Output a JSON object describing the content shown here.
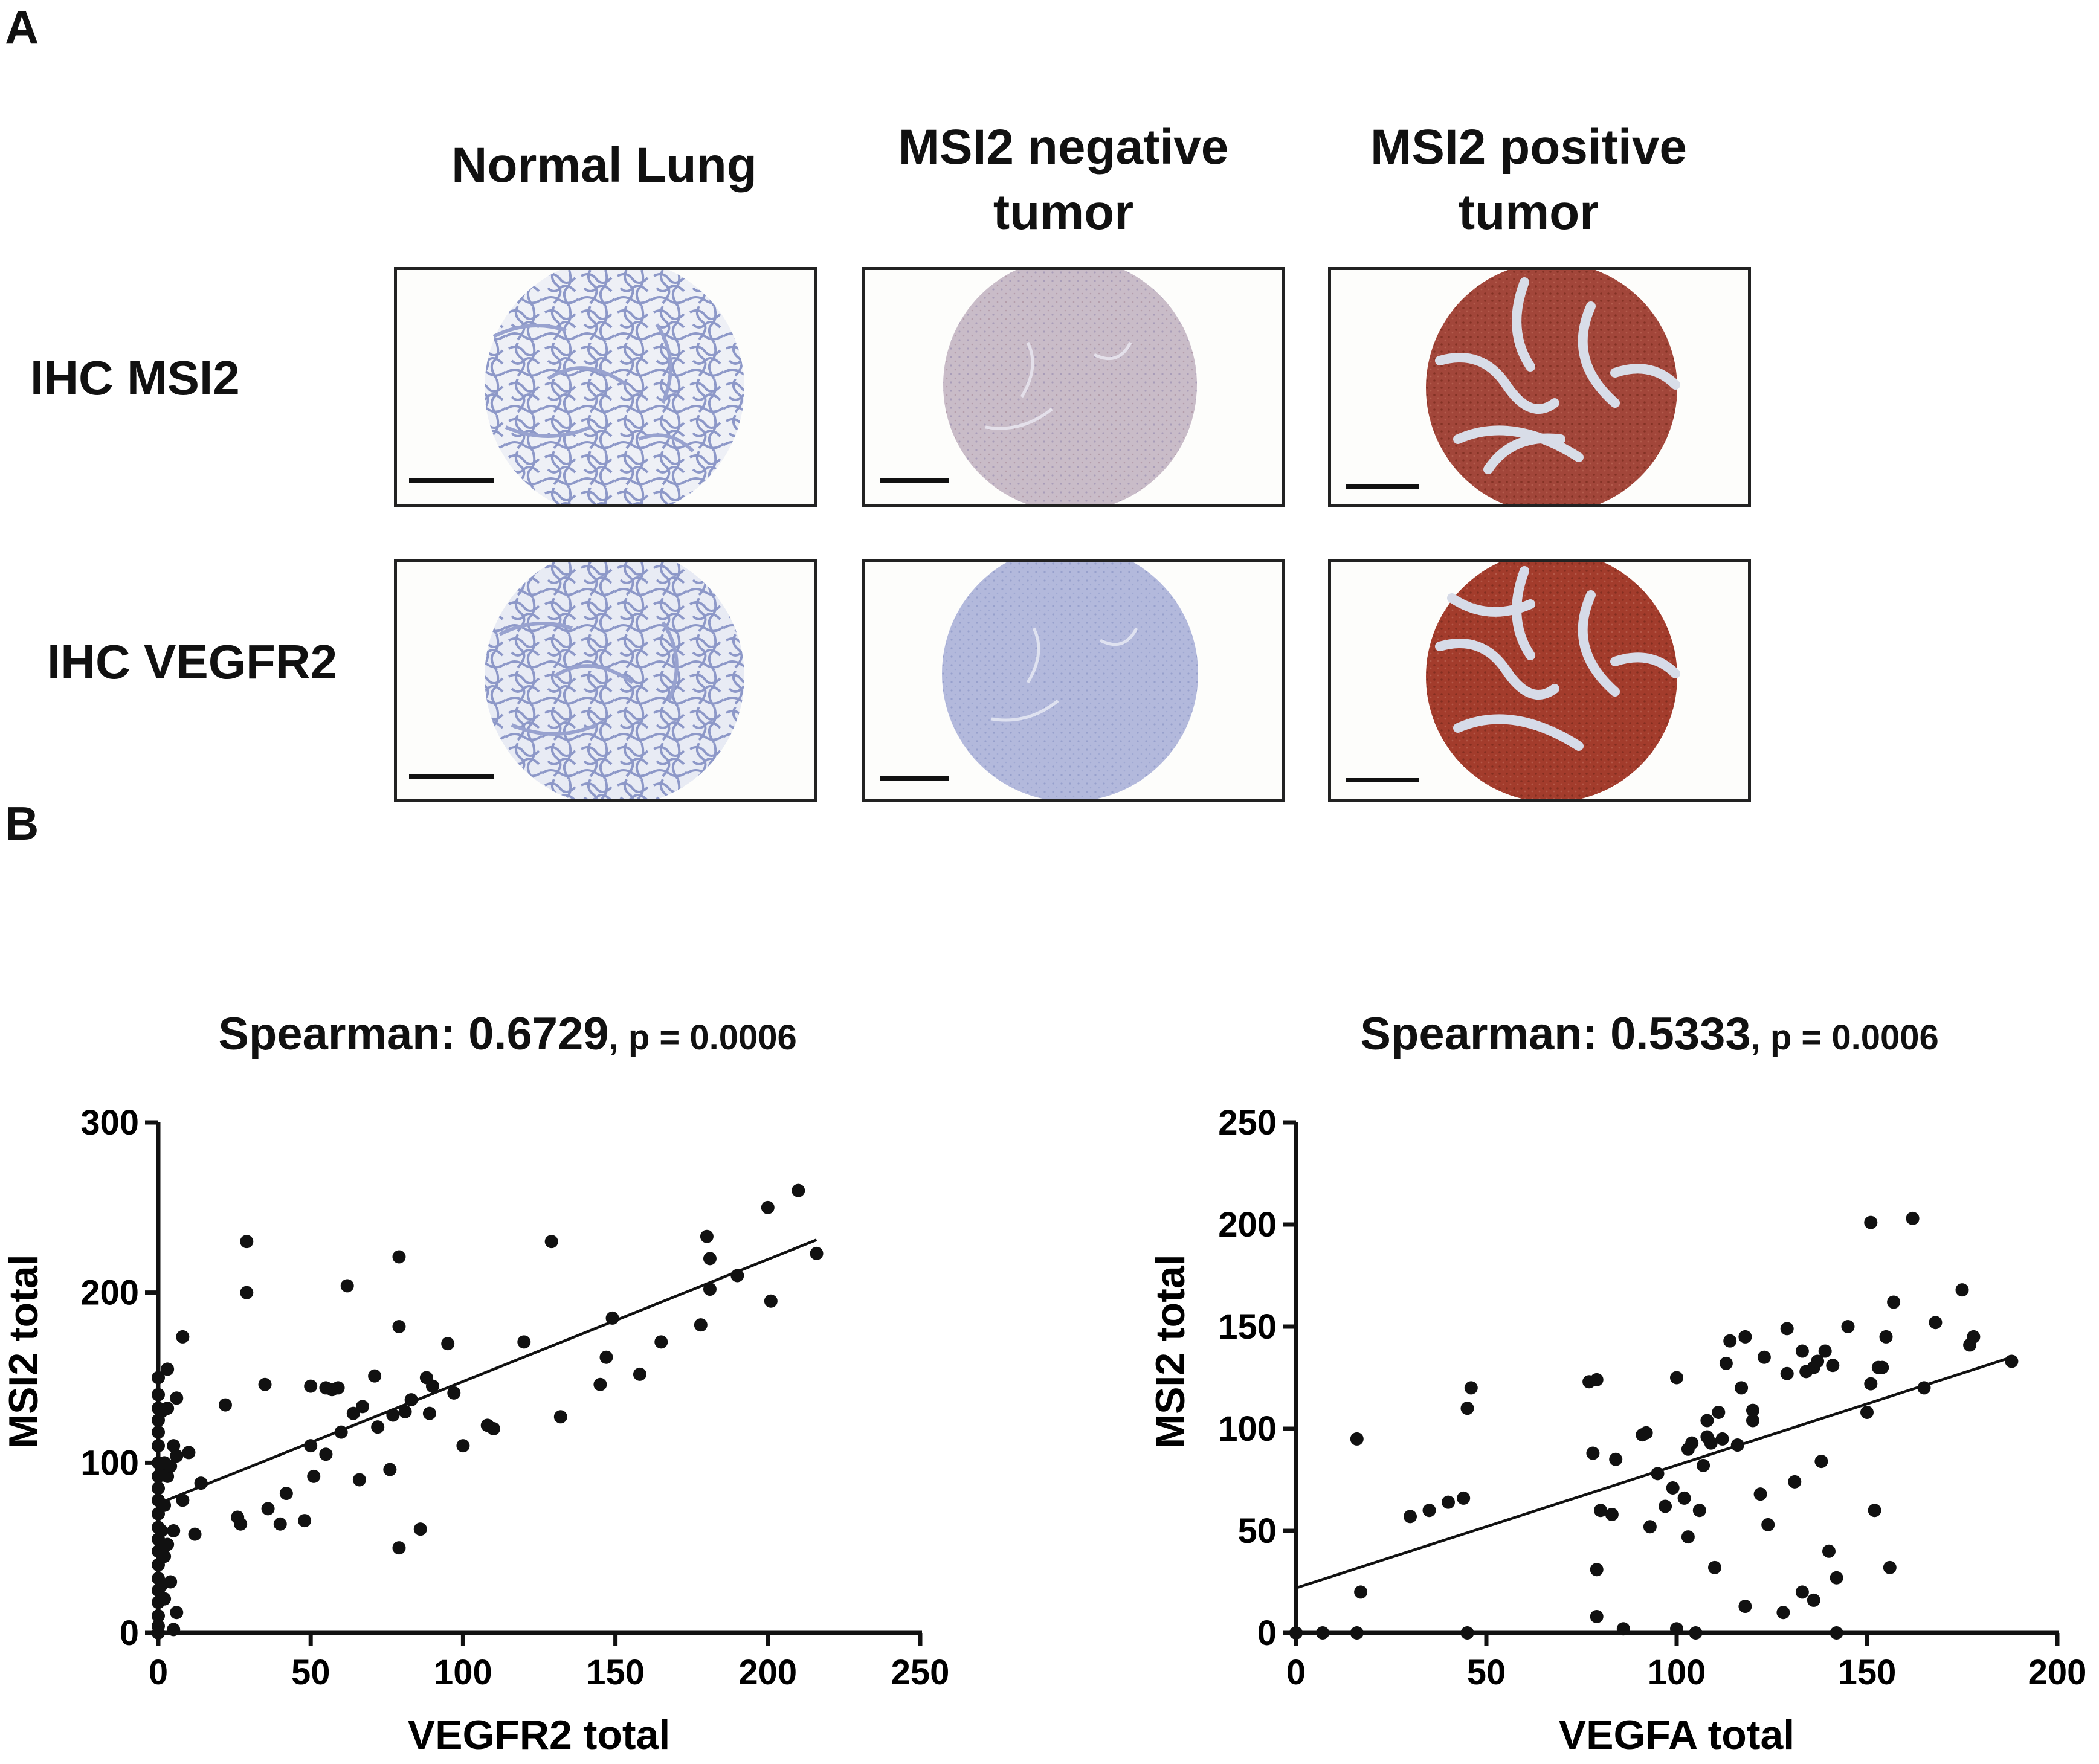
{
  "figure": {
    "panel_a_label": "A",
    "panel_b_label": "B"
  },
  "panel_a": {
    "columns": [
      {
        "title_line1": "Normal Lung",
        "title_line2": ""
      },
      {
        "title_line1": "MSI2 negative",
        "title_line2": "tumor"
      },
      {
        "title_line1": "MSI2 positive",
        "title_line2": "tumor"
      }
    ],
    "rows": [
      {
        "label": "IHC MSI2"
      },
      {
        "label": "IHC VEGFR2"
      }
    ],
    "stain_colors": {
      "hematoxylin": "#aab4d6",
      "weak_brown": "#c7b3bf",
      "dab_strong": "#9a3a2c",
      "background": "#fdfdfb"
    }
  },
  "chart_data": [
    {
      "type": "scatter",
      "title": "Spearman: 0.6729",
      "subtitle": ", p = 0.0006",
      "xlabel": "VEGFR2 total",
      "ylabel": "MSI2 total",
      "xlim": [
        0,
        250
      ],
      "ylim": [
        0,
        300
      ],
      "xticks": [
        0,
        50,
        100,
        150,
        200,
        250
      ],
      "yticks": [
        0,
        100,
        200,
        300
      ],
      "fit_line": {
        "x": [
          0,
          216
        ],
        "y": [
          76,
          231
        ]
      },
      "points": [
        [
          0,
          150
        ],
        [
          0,
          140
        ],
        [
          0,
          132
        ],
        [
          0,
          125
        ],
        [
          0,
          118
        ],
        [
          0,
          110
        ],
        [
          0,
          100
        ],
        [
          0,
          92
        ],
        [
          0,
          85
        ],
        [
          0,
          78
        ],
        [
          0,
          70
        ],
        [
          0,
          62
        ],
        [
          0,
          55
        ],
        [
          0,
          48
        ],
        [
          0,
          40
        ],
        [
          0,
          32
        ],
        [
          0,
          25
        ],
        [
          0,
          18
        ],
        [
          0,
          10
        ],
        [
          0,
          4
        ],
        [
          0,
          0
        ],
        [
          1,
          130
        ],
        [
          1,
          96
        ],
        [
          1,
          60
        ],
        [
          1,
          28
        ],
        [
          2,
          100
        ],
        [
          2,
          75
        ],
        [
          2,
          45
        ],
        [
          2,
          20
        ],
        [
          3,
          155
        ],
        [
          3,
          132
        ],
        [
          3,
          92
        ],
        [
          3,
          52
        ],
        [
          4,
          98
        ],
        [
          4,
          30
        ],
        [
          5,
          110
        ],
        [
          5,
          60
        ],
        [
          5,
          2
        ],
        [
          6,
          138
        ],
        [
          6,
          104
        ],
        [
          6,
          12
        ],
        [
          8,
          174
        ],
        [
          8,
          78
        ],
        [
          10,
          106
        ],
        [
          12,
          58
        ],
        [
          14,
          88
        ],
        [
          22,
          134
        ],
        [
          26,
          68
        ],
        [
          27,
          64
        ],
        [
          29,
          230
        ],
        [
          29,
          200
        ],
        [
          35,
          146
        ],
        [
          36,
          73
        ],
        [
          40,
          64
        ],
        [
          42,
          82
        ],
        [
          48,
          66
        ],
        [
          50,
          110
        ],
        [
          50,
          145
        ],
        [
          51,
          92
        ],
        [
          55,
          144
        ],
        [
          55,
          105
        ],
        [
          57,
          143
        ],
        [
          59,
          144
        ],
        [
          60,
          118
        ],
        [
          62,
          204
        ],
        [
          64,
          129
        ],
        [
          66,
          90
        ],
        [
          67,
          133
        ],
        [
          71,
          151
        ],
        [
          72,
          121
        ],
        [
          76,
          96
        ],
        [
          77,
          128
        ],
        [
          79,
          221
        ],
        [
          79,
          180
        ],
        [
          79,
          50
        ],
        [
          81,
          130
        ],
        [
          83,
          137
        ],
        [
          86,
          61
        ],
        [
          88,
          150
        ],
        [
          89,
          129
        ],
        [
          90,
          145
        ],
        [
          95,
          170
        ],
        [
          97,
          141
        ],
        [
          100,
          110
        ],
        [
          108,
          122
        ],
        [
          110,
          120
        ],
        [
          120,
          171
        ],
        [
          129,
          230
        ],
        [
          132,
          127
        ],
        [
          145,
          146
        ],
        [
          147,
          162
        ],
        [
          149,
          185
        ],
        [
          158,
          152
        ],
        [
          165,
          171
        ],
        [
          178,
          181
        ],
        [
          180,
          233
        ],
        [
          181,
          202
        ],
        [
          181,
          220
        ],
        [
          190,
          210
        ],
        [
          200,
          250
        ],
        [
          201,
          195
        ],
        [
          210,
          260
        ],
        [
          216,
          223
        ]
      ]
    },
    {
      "type": "scatter",
      "title": "Spearman: 0.5333",
      "subtitle": ", p = 0.0006",
      "xlabel": "VEGFA total",
      "ylabel": "MSI2 total",
      "xlim": [
        0,
        200
      ],
      "ylim": [
        0,
        250
      ],
      "xticks": [
        0,
        50,
        100,
        150,
        200
      ],
      "yticks": [
        0,
        50,
        100,
        150,
        200,
        250
      ],
      "fit_line": {
        "x": [
          0,
          188
        ],
        "y": [
          22,
          135
        ]
      },
      "points": [
        [
          0,
          0
        ],
        [
          7,
          0
        ],
        [
          16,
          0
        ],
        [
          16,
          95
        ],
        [
          17,
          20
        ],
        [
          30,
          57
        ],
        [
          35,
          60
        ],
        [
          40,
          64
        ],
        [
          44,
          66
        ],
        [
          45,
          110
        ],
        [
          45,
          0
        ],
        [
          46,
          120
        ],
        [
          77,
          123
        ],
        [
          78,
          88
        ],
        [
          79,
          124
        ],
        [
          79,
          31
        ],
        [
          79,
          8
        ],
        [
          80,
          60
        ],
        [
          83,
          58
        ],
        [
          84,
          85
        ],
        [
          86,
          2
        ],
        [
          91,
          97
        ],
        [
          92,
          98
        ],
        [
          93,
          52
        ],
        [
          95,
          78
        ],
        [
          97,
          62
        ],
        [
          99,
          71
        ],
        [
          100,
          2
        ],
        [
          100,
          125
        ],
        [
          102,
          66
        ],
        [
          103,
          90
        ],
        [
          103,
          47
        ],
        [
          104,
          93
        ],
        [
          105,
          0
        ],
        [
          106,
          60
        ],
        [
          107,
          82
        ],
        [
          108,
          104
        ],
        [
          108,
          96
        ],
        [
          109,
          93
        ],
        [
          110,
          32
        ],
        [
          111,
          108
        ],
        [
          112,
          95
        ],
        [
          113,
          132
        ],
        [
          114,
          143
        ],
        [
          116,
          92
        ],
        [
          117,
          120
        ],
        [
          118,
          145
        ],
        [
          118,
          13
        ],
        [
          120,
          104
        ],
        [
          120,
          109
        ],
        [
          122,
          68
        ],
        [
          123,
          135
        ],
        [
          124,
          53
        ],
        [
          128,
          10
        ],
        [
          129,
          127
        ],
        [
          129,
          149
        ],
        [
          131,
          74
        ],
        [
          133,
          20
        ],
        [
          133,
          138
        ],
        [
          134,
          128
        ],
        [
          136,
          130
        ],
        [
          136,
          16
        ],
        [
          137,
          133
        ],
        [
          138,
          84
        ],
        [
          139,
          138
        ],
        [
          140,
          40
        ],
        [
          141,
          131
        ],
        [
          142,
          0
        ],
        [
          142,
          27
        ],
        [
          145,
          150
        ],
        [
          150,
          108
        ],
        [
          151,
          122
        ],
        [
          151,
          201
        ],
        [
          152,
          60
        ],
        [
          153,
          130
        ],
        [
          154,
          130
        ],
        [
          155,
          145
        ],
        [
          156,
          32
        ],
        [
          157,
          162
        ],
        [
          162,
          203
        ],
        [
          165,
          120
        ],
        [
          168,
          152
        ],
        [
          175,
          168
        ],
        [
          177,
          141
        ],
        [
          178,
          145
        ],
        [
          188,
          133
        ]
      ]
    }
  ]
}
